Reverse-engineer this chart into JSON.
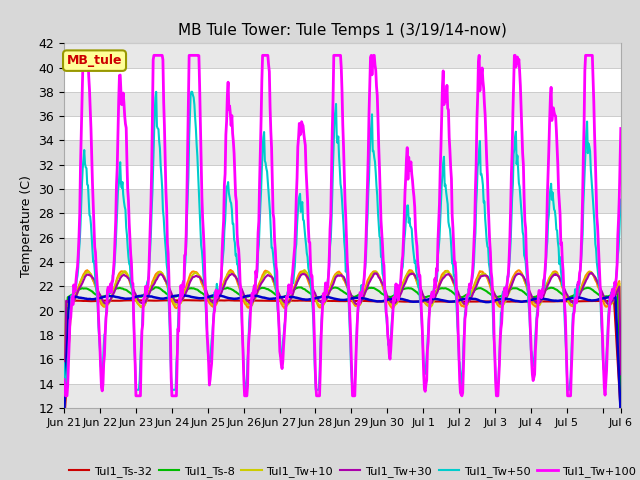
{
  "title": "MB Tule Tower: Tule Temps 1 (3/19/14-now)",
  "ylabel": "Temperature (C)",
  "ylim": [
    12,
    42
  ],
  "yticks": [
    12,
    14,
    16,
    18,
    20,
    22,
    24,
    26,
    28,
    30,
    32,
    34,
    36,
    38,
    40,
    42
  ],
  "bg_color": "#d8d8d8",
  "plot_bg_color": "#ffffff",
  "stripe_color": "#e8e8e8",
  "legend_box_color": "#ffff99",
  "legend_box_edge": "#999900",
  "legend_label": "MB_tule",
  "series": {
    "Tul1_Ts-32": {
      "color": "#cc0000",
      "lw": 1.5,
      "zorder": 3
    },
    "Tul1_Ts-16": {
      "color": "#0000cc",
      "lw": 1.8,
      "zorder": 4
    },
    "Tul1_Ts-8": {
      "color": "#00bb00",
      "lw": 1.5,
      "zorder": 3
    },
    "Tul1_Ts0": {
      "color": "#ff8800",
      "lw": 1.5,
      "zorder": 3
    },
    "Tul1_Tw+10": {
      "color": "#cccc00",
      "lw": 1.5,
      "zorder": 3
    },
    "Tul1_Tw+30": {
      "color": "#aa00aa",
      "lw": 1.5,
      "zorder": 3
    },
    "Tul1_Tw+50": {
      "color": "#00cccc",
      "lw": 1.5,
      "zorder": 5
    },
    "Tul1_Tw+100": {
      "color": "#ff00ff",
      "lw": 2.0,
      "zorder": 6
    }
  },
  "xtick_positions": [
    0,
    1,
    2,
    3,
    4,
    5,
    6,
    7,
    8,
    9,
    10,
    11,
    12,
    13,
    14,
    15,
    15.5
  ],
  "xtick_labels": [
    "Jun 21",
    "Jun 22",
    "Jun 23",
    "Jun 24",
    "Jun 25",
    "Jun 26",
    "Jun 27",
    "Jun 28",
    "Jun 29",
    "Jun 30",
    "Jul 1",
    "Jul 2",
    "Jul 3",
    "Jul 4",
    "Jul 5",
    "",
    "Jul 6"
  ],
  "date_end": 15.5
}
